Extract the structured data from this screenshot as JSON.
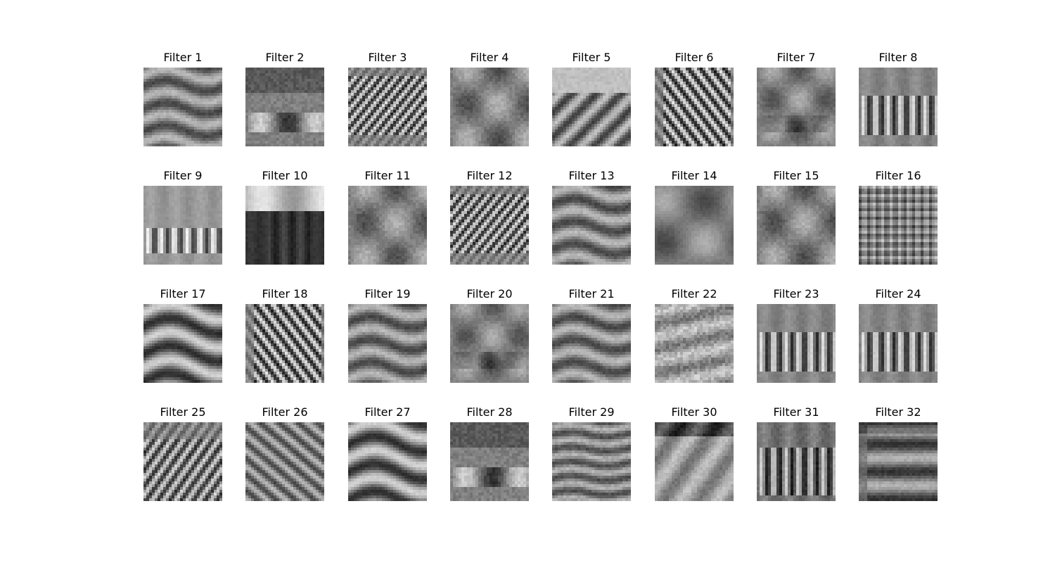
{
  "figure": {
    "colormap": "gray",
    "panels": [
      {
        "title": "Filter 1",
        "pattern": "wavy-horizontal"
      },
      {
        "title": "Filter 2",
        "pattern": "dark-roof-bright-base"
      },
      {
        "title": "Filter 3",
        "pattern": "diagonal-stripes-fine"
      },
      {
        "title": "Filter 4",
        "pattern": "soft-blobs"
      },
      {
        "title": "Filter 5",
        "pattern": "bright-top-diagonal"
      },
      {
        "title": "Filter 6",
        "pattern": "diagonal-stripes"
      },
      {
        "title": "Filter 7",
        "pattern": "soft-blobs-dark-bottom"
      },
      {
        "title": "Filter 8",
        "pattern": "vertical-streaks"
      },
      {
        "title": "Filter 9",
        "pattern": "vertical-streaks-light"
      },
      {
        "title": "Filter 10",
        "pattern": "dark-house-bright-roof"
      },
      {
        "title": "Filter 11",
        "pattern": "soft-blobs"
      },
      {
        "title": "Filter 12",
        "pattern": "diagonal-stripes-fine"
      },
      {
        "title": "Filter 13",
        "pattern": "wavy-horizontal"
      },
      {
        "title": "Filter 14",
        "pattern": "large-blobs"
      },
      {
        "title": "Filter 15",
        "pattern": "soft-blobs"
      },
      {
        "title": "Filter 16",
        "pattern": "diamond-lattice"
      },
      {
        "title": "Filter 17",
        "pattern": "wavy-horizontal-strong"
      },
      {
        "title": "Filter 18",
        "pattern": "diagonal-stripes"
      },
      {
        "title": "Filter 19",
        "pattern": "wavy-horizontal"
      },
      {
        "title": "Filter 20",
        "pattern": "soft-blobs-dark-bottom"
      },
      {
        "title": "Filter 21",
        "pattern": "wavy-horizontal"
      },
      {
        "title": "Filter 22",
        "pattern": "bright-noise"
      },
      {
        "title": "Filter 23",
        "pattern": "vertical-streaks"
      },
      {
        "title": "Filter 24",
        "pattern": "vertical-streaks"
      },
      {
        "title": "Filter 25",
        "pattern": "roof-lattice"
      },
      {
        "title": "Filter 26",
        "pattern": "diagonal-streaks-soft"
      },
      {
        "title": "Filter 27",
        "pattern": "wavy-horizontal-strong"
      },
      {
        "title": "Filter 28",
        "pattern": "dark-roof-bright-base"
      },
      {
        "title": "Filter 29",
        "pattern": "wavy-horizontal-fine"
      },
      {
        "title": "Filter 30",
        "pattern": "dark-top-bright-base"
      },
      {
        "title": "Filter 31",
        "pattern": "vertical-streaks-dark"
      },
      {
        "title": "Filter 32",
        "pattern": "dark-top-eye"
      }
    ]
  }
}
